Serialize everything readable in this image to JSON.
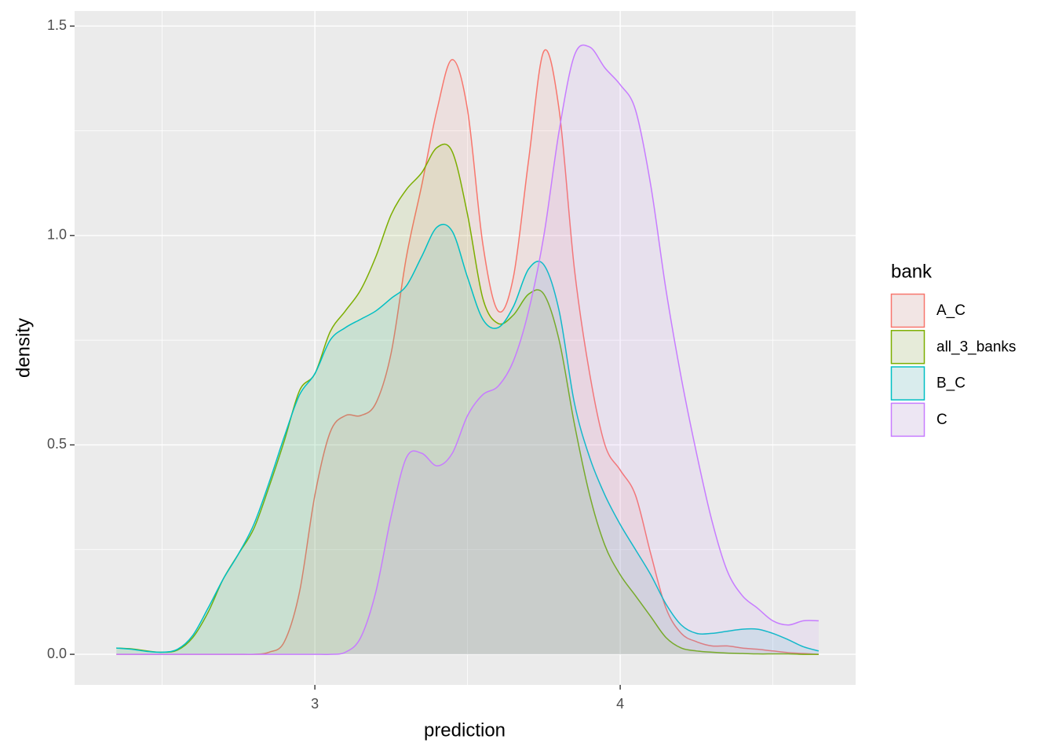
{
  "chart_data": {
    "type": "density",
    "x_label": "prediction",
    "y_label": "density",
    "legend_title": "bank",
    "legend_position": "right",
    "x": [
      2.35,
      2.4,
      2.45,
      2.5,
      2.55,
      2.6,
      2.65,
      2.7,
      2.75,
      2.8,
      2.85,
      2.9,
      2.95,
      3.0,
      3.05,
      3.1,
      3.15,
      3.2,
      3.25,
      3.3,
      3.35,
      3.4,
      3.45,
      3.5,
      3.55,
      3.6,
      3.65,
      3.7,
      3.75,
      3.8,
      3.85,
      3.9,
      3.95,
      4.0,
      4.05,
      4.1,
      4.15,
      4.2,
      4.25,
      4.3,
      4.35,
      4.4,
      4.45,
      4.5,
      4.55,
      4.6,
      4.65
    ],
    "series": [
      {
        "name": "A_C",
        "color": "#F8766D",
        "values": [
          0,
          0,
          0,
          0,
          0,
          0,
          0,
          0,
          0,
          0,
          0.005,
          0.03,
          0.15,
          0.38,
          0.53,
          0.57,
          0.57,
          0.6,
          0.72,
          0.95,
          1.12,
          1.3,
          1.42,
          1.3,
          0.98,
          0.82,
          0.9,
          1.18,
          1.44,
          1.3,
          0.92,
          0.67,
          0.5,
          0.44,
          0.38,
          0.24,
          0.11,
          0.05,
          0.03,
          0.02,
          0.02,
          0.015,
          0.012,
          0.008,
          0.004,
          0.002,
          0
        ]
      },
      {
        "name": "all_3_banks",
        "color": "#7CAE00",
        "values": [
          0.015,
          0.013,
          0.008,
          0.005,
          0.01,
          0.04,
          0.1,
          0.18,
          0.24,
          0.3,
          0.4,
          0.51,
          0.63,
          0.67,
          0.77,
          0.82,
          0.87,
          0.95,
          1.05,
          1.11,
          1.15,
          1.21,
          1.2,
          1.05,
          0.85,
          0.79,
          0.81,
          0.86,
          0.86,
          0.75,
          0.55,
          0.38,
          0.26,
          0.19,
          0.14,
          0.09,
          0.04,
          0.015,
          0.008,
          0.005,
          0.003,
          0.002,
          0.001,
          0.001,
          0.001,
          0,
          0
        ]
      },
      {
        "name": "B_C",
        "color": "#00BFC4",
        "values": [
          0.015,
          0.012,
          0.007,
          0.005,
          0.012,
          0.045,
          0.11,
          0.18,
          0.24,
          0.31,
          0.41,
          0.52,
          0.62,
          0.67,
          0.75,
          0.78,
          0.8,
          0.82,
          0.85,
          0.88,
          0.95,
          1.02,
          1.01,
          0.9,
          0.8,
          0.78,
          0.83,
          0.92,
          0.93,
          0.82,
          0.6,
          0.47,
          0.38,
          0.31,
          0.25,
          0.19,
          0.12,
          0.07,
          0.05,
          0.05,
          0.055,
          0.06,
          0.06,
          0.05,
          0.035,
          0.018,
          0.008
        ]
      },
      {
        "name": "C",
        "color": "#C77CFF",
        "values": [
          0,
          0,
          0,
          0,
          0,
          0,
          0,
          0,
          0,
          0,
          0,
          0,
          0,
          0,
          0,
          0.005,
          0.04,
          0.15,
          0.33,
          0.47,
          0.48,
          0.45,
          0.48,
          0.57,
          0.62,
          0.64,
          0.7,
          0.82,
          1.0,
          1.25,
          1.43,
          1.45,
          1.4,
          1.36,
          1.3,
          1.12,
          0.87,
          0.66,
          0.48,
          0.32,
          0.2,
          0.14,
          0.11,
          0.08,
          0.07,
          0.08,
          0.08
        ]
      }
    ],
    "fill_alpha": 0.1,
    "xlim": [
      2.213,
      4.771
    ],
    "ylim": [
      -0.073,
      1.536
    ],
    "xticks": [
      3,
      4
    ],
    "yticks": [
      {
        "value": 0,
        "label": "0.0"
      },
      {
        "value": 0.5,
        "label": "0.5"
      },
      {
        "value": 1,
        "label": "1.0"
      },
      {
        "value": 1.5,
        "label": "1.5"
      }
    ],
    "x_minor_ticks": [
      2.5,
      3.5,
      4.5
    ],
    "y_minor_ticks": [
      0.25,
      0.75,
      1.25
    ],
    "grid": true
  }
}
